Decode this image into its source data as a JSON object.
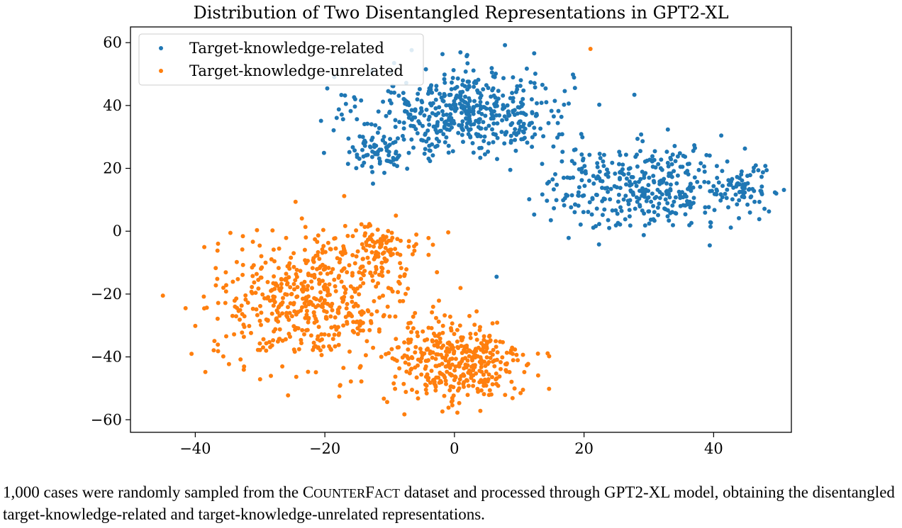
{
  "chart_data": {
    "type": "scatter",
    "title": "Distribution of Two Disentangled Representations in GPT2-XL",
    "xlabel": "",
    "ylabel": "",
    "xlim": [
      -50,
      52
    ],
    "ylim": [
      -64,
      65
    ],
    "xticks": [
      -40,
      -20,
      0,
      20,
      40
    ],
    "yticks": [
      60,
      40,
      20,
      0,
      -20,
      -40,
      -60
    ],
    "xtick_labels": [
      "−40",
      "−20",
      "0",
      "20",
      "40"
    ],
    "ytick_labels": [
      "60",
      "40",
      "20",
      "0",
      "−20",
      "−40",
      "−60"
    ],
    "grid": false,
    "legend_placement": "top-left",
    "series": [
      {
        "name": "Target-knowledge-related",
        "color": "#1f77b4",
        "n": 1000,
        "clusters": [
          {
            "cx": 2,
            "cy": 38,
            "sx": 8,
            "sy": 7,
            "n": 500
          },
          {
            "cx": -12,
            "cy": 25,
            "sx": 2.8,
            "sy": 3,
            "n": 70
          },
          {
            "cx": 30,
            "cy": 14,
            "sx": 8,
            "sy": 6.5,
            "n": 380
          },
          {
            "cx": 45,
            "cy": 14,
            "sx": 1.6,
            "sy": 3,
            "n": 50
          }
        ],
        "extra_points": [
          [
            6.5,
            -14.5
          ],
          [
            7.8,
            59.2
          ],
          [
            12.3,
            56.6
          ],
          [
            -15.4,
            25.7
          ],
          [
            47.4,
            12.2
          ],
          [
            39.4,
            -4.5
          ]
        ]
      },
      {
        "name": "Target-knowledge-unrelated",
        "color": "#ff7f0e",
        "n": 1000,
        "clusters": [
          {
            "cx": -22,
            "cy": -22,
            "sx": 7.5,
            "sy": 10,
            "n": 520
          },
          {
            "cx": -12,
            "cy": -6,
            "sx": 3.5,
            "sy": 4,
            "n": 100
          },
          {
            "cx": 0,
            "cy": -42,
            "sx": 5.5,
            "sy": 7,
            "n": 380
          }
        ],
        "extra_points": [
          [
            21,
            58
          ],
          [
            -45,
            -20.5
          ],
          [
            -41.5,
            -24.5
          ],
          [
            10.2,
            -51.5
          ],
          [
            4,
            -57.2
          ],
          [
            -13,
            1.8
          ]
        ]
      }
    ]
  },
  "caption": {
    "part1": "1,000 cases were randomly sampled from the C",
    "sc1": "OUNTER",
    "part2": "F",
    "sc2": "ACT",
    "part3": " dataset and processed through GPT2-XL model, obtaining the disentangled target-knowledge-related and target-knowledge-unrelated representations."
  }
}
